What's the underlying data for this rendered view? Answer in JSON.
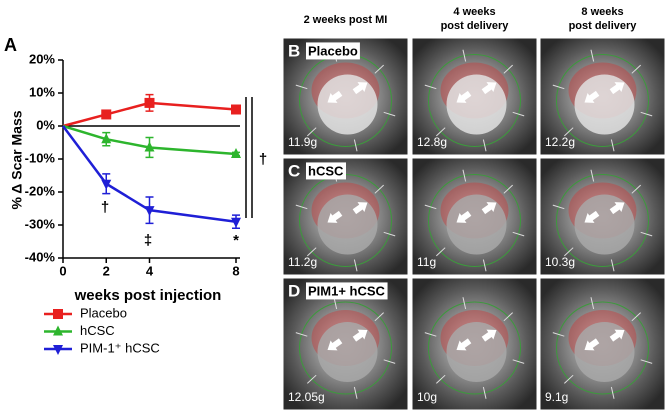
{
  "chart_data": {
    "type": "line",
    "panel_label": "A",
    "y_label": "% Δ Scar Mass",
    "x_label": "weeks post injection",
    "x": [
      0,
      2,
      4,
      8
    ],
    "xlim": [
      0,
      8
    ],
    "xticks": [
      0,
      2,
      4,
      8
    ],
    "ylim": [
      -40,
      20
    ],
    "yticks": [
      {
        "value": -40,
        "label": "-40%"
      },
      {
        "value": -30,
        "label": "-30%"
      },
      {
        "value": -20,
        "label": "-20%"
      },
      {
        "value": -10,
        "label": "-10%"
      },
      {
        "value": 0,
        "label": "0%"
      },
      {
        "value": 10,
        "label": "10%"
      },
      {
        "value": 20,
        "label": "20%"
      }
    ],
    "series": [
      {
        "name": "Placebo",
        "color": "#e8201f",
        "marker": "square",
        "values": [
          0,
          3.5,
          7,
          5
        ],
        "errors": [
          null,
          1,
          2.5,
          1
        ]
      },
      {
        "name": "hCSC",
        "color": "#2db52d",
        "marker": "triangle",
        "values": [
          0,
          -4,
          -6.5,
          -8.5
        ],
        "errors": [
          null,
          2,
          3,
          0.5
        ]
      },
      {
        "name": "PIM-1⁺ hCSC",
        "color": "#1f1fd6",
        "marker": "triangle-down",
        "values": [
          0,
          -17.5,
          -25.5,
          -29
        ],
        "errors": [
          null,
          3,
          4,
          2
        ]
      }
    ],
    "annotations": [
      "†",
      "‡",
      "*",
      "†"
    ]
  },
  "panels": {
    "headers": [
      [
        "2 weeks post MI"
      ],
      [
        "4 weeks",
        "post delivery"
      ],
      [
        "8 weeks",
        "post delivery"
      ]
    ],
    "rows": [
      {
        "letter": "B",
        "label": "Placebo",
        "masses": [
          "11.9g",
          "12.8g",
          "12.2g"
        ]
      },
      {
        "letter": "C",
        "label": "hCSC",
        "masses": [
          "11.2g",
          "11g",
          "10.3g"
        ]
      },
      {
        "letter": "D",
        "label": "PIM1+ hCSC",
        "masses": [
          "12.05g",
          "10g",
          "9.1g"
        ]
      }
    ]
  }
}
